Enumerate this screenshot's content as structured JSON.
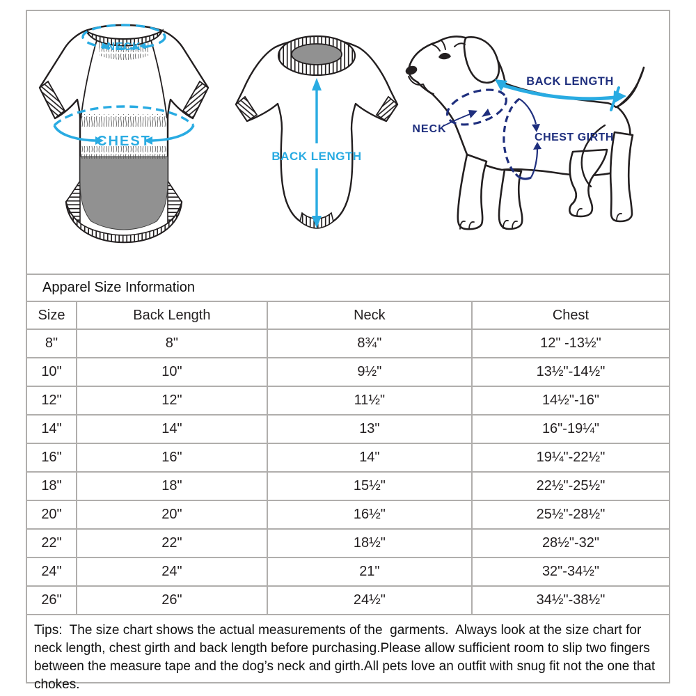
{
  "colors": {
    "accent_cyan": "#29ABE2",
    "accent_navy": "#1F2F7E",
    "ink": "#231F20",
    "grid_grey": "#B0AEAC",
    "panel_grey": "#919191"
  },
  "diagrams": {
    "garment_back": {
      "neck_label": "NECK",
      "chest_label": "CHEST"
    },
    "garment_front": {
      "back_length_label": "BACK LENGTH"
    },
    "dog": {
      "back_length_label": "BACK LENGTH",
      "neck_label": "NECK",
      "chest_girth_label": "CHEST GIRTH"
    }
  },
  "table": {
    "title": "Apparel Size Information",
    "columns": [
      "Size",
      "Back Length",
      "Neck",
      "Chest"
    ],
    "rows": [
      [
        "8\"",
        "8\"",
        "8¾\"",
        "12\" -13½\""
      ],
      [
        "10\"",
        "10\"",
        "9½\"",
        "13½\"-14½\""
      ],
      [
        "12\"",
        "12\"",
        "11½\"",
        "14½\"-16\""
      ],
      [
        "14\"",
        "14\"",
        "13\"",
        "16\"-19¼\""
      ],
      [
        "16\"",
        "16\"",
        "14\"",
        "19¼\"-22½\""
      ],
      [
        "18\"",
        "18\"",
        "15½\"",
        "22½\"-25½\""
      ],
      [
        "20\"",
        "20\"",
        "16½\"",
        "25½\"-28½\""
      ],
      [
        "22\"",
        "22\"",
        "18½\"",
        "28½\"-32\""
      ],
      [
        "24\"",
        "24\"",
        "21\"",
        "32\"-34½\""
      ],
      [
        "26\"",
        "26\"",
        "24½\"",
        "34½\"-38½\""
      ]
    ]
  },
  "tips": {
    "text": "Tips:  The size chart shows the actual measurements of the  garments.  Always look at the size chart for neck length, chest girth and back length before purchasing.Please allow sufficient room to slip two fingers between the measure tape and the dog’s neck and girth.All pets love an outfit with snug fit not the one that chokes."
  }
}
